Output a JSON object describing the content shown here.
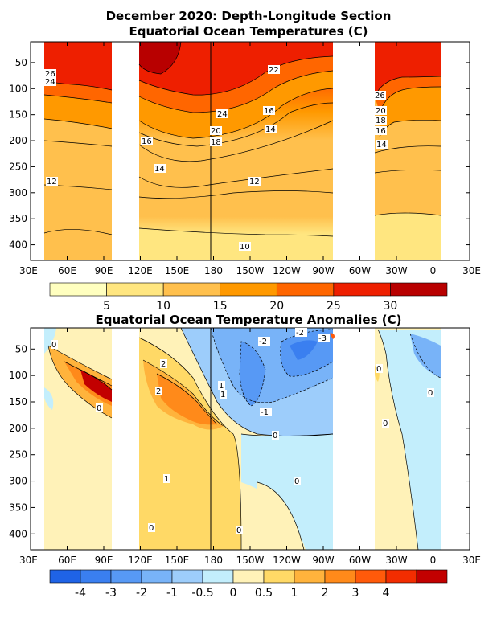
{
  "titles": {
    "line1": "December 2020: Depth-Longitude Section",
    "line2": "Equatorial Ocean Temperatures (C)",
    "line3": "Equatorial Ocean Temperature Anomalies (C)"
  },
  "chart_data": [
    {
      "type": "heatmap",
      "title": "Equatorial Ocean Temperatures (C)",
      "x_range": [
        "30E",
        "30E"
      ],
      "y_range": [
        430,
        10
      ],
      "y_axis_values": [
        50,
        100,
        150,
        200,
        250,
        300,
        350,
        400
      ],
      "xticks": [
        "30E",
        "60E",
        "90E",
        "120E",
        "150E",
        "180",
        "150W",
        "120W",
        "90W",
        "60W",
        "30W",
        "0",
        "30E"
      ],
      "contour_labels": [
        "26",
        "24",
        "22",
        "24",
        "16",
        "20",
        "18",
        "16",
        "14",
        "14",
        "12",
        "12",
        "10",
        "26",
        "20",
        "18",
        "16",
        "14"
      ],
      "colorbar_ticks": [
        "5",
        "10",
        "15",
        "20",
        "25",
        "30"
      ],
      "colorbar_colors": [
        "#ffffbf",
        "#ffe680",
        "#ffc04d",
        "#ff9900",
        "#ff6600",
        "#ee1f00",
        "#b80000"
      ]
    },
    {
      "type": "heatmap",
      "title": "Equatorial Ocean Temperature Anomalies (C)",
      "x_range": [
        "30E",
        "30E"
      ],
      "y_range": [
        430,
        10
      ],
      "y_axis_values": [
        50,
        100,
        150,
        200,
        250,
        300,
        350,
        400
      ],
      "xticks": [
        "30E",
        "60E",
        "90E",
        "120E",
        "150E",
        "180",
        "150W",
        "120W",
        "90W",
        "60W",
        "30W",
        "0",
        "30E"
      ],
      "contour_labels": [
        "0",
        "2",
        "2",
        "1",
        "1",
        "0",
        "-2",
        "-2",
        "-3",
        "-1",
        "0",
        "0",
        "1",
        "0",
        "0",
        "0",
        "0",
        "0"
      ],
      "colorbar_ticks": [
        "-4",
        "-3",
        "-2",
        "-1",
        "-0.5",
        "0",
        "0.5",
        "1",
        "2",
        "3",
        "4"
      ],
      "colorbar_colors": [
        "#1f63e6",
        "#3a7ff0",
        "#5799f5",
        "#78b3f8",
        "#9dcdfb",
        "#c3eefc",
        "#fff2b8",
        "#ffd966",
        "#ffb33c",
        "#ff8a1a",
        "#ff5a0a",
        "#f22d00",
        "#c20000"
      ]
    }
  ]
}
